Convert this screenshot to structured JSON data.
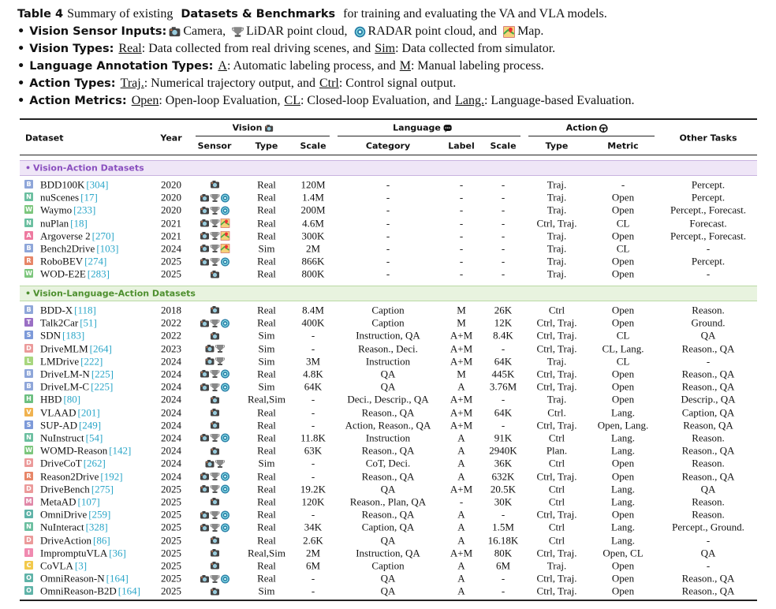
{
  "caption": {
    "label": "Table 4",
    "parts": [
      "Summary of existing",
      "Datasets & Benchmarks",
      "for training and evaluating the VA and VLA models."
    ]
  },
  "bullets": [
    {
      "term": "Vision Sensor Inputs:",
      "segments": [
        "Camera,",
        "LiDAR point cloud,",
        "RADAR point cloud, and",
        "Map."
      ]
    },
    {
      "term": "Vision Types:",
      "segments": [
        {
          "u": "Real"
        },
        ": Data collected from real driving scenes, and",
        {
          "u": "Sim"
        },
        ": Data collected from simulator."
      ]
    },
    {
      "term": "Language Annotation Types:",
      "segments": [
        {
          "u": "A"
        },
        ": Automatic labeling process, and",
        {
          "u": "M"
        },
        ": Manual labeling process."
      ]
    },
    {
      "term": "Action Types:",
      "segments": [
        {
          "u": "Traj."
        },
        ": Numerical trajectory output, and",
        {
          "u": "Ctrl"
        },
        ": Control signal output."
      ]
    },
    {
      "term": "Action Metrics:",
      "segments": [
        {
          "u": "Open"
        },
        ": Open-loop Evaluation,",
        {
          "u": "CL"
        },
        ": Closed-loop Evaluation, and",
        {
          "u": "Lang."
        },
        ": Language-based Evaluation."
      ]
    }
  ],
  "table": {
    "headers": {
      "dataset": "Dataset",
      "year": "Year",
      "vision": "Vision",
      "language": "Language",
      "action": "Action",
      "other": "Other Tasks",
      "sub": [
        "Sensor",
        "Type",
        "Scale",
        "Category",
        "Label",
        "Scale",
        "Type",
        "Metric"
      ]
    },
    "sections": [
      {
        "title": "Vision-Action Datasets",
        "rows": [
          [
            "B",
            "BDD100K",
            "[304]",
            2020,
            "Real",
            "120M",
            "-",
            "-",
            "-",
            "Traj.",
            "-",
            "Percept."
          ],
          [
            "N",
            "nuScenes",
            "[17]",
            2020,
            "Real",
            "1.4M",
            "-",
            "-",
            "-",
            "Traj.",
            "Open",
            "Percept."
          ],
          [
            "W",
            "Waymo",
            "[233]",
            2020,
            "Real",
            "200M",
            "-",
            "-",
            "-",
            "Traj.",
            "Open",
            "Percept., Forecast."
          ],
          [
            "N",
            "nuPlan",
            "[18]",
            2021,
            "Real",
            "4.6M",
            "-",
            "-",
            "-",
            "Ctrl, Traj.",
            "CL",
            "Forecast."
          ],
          [
            "A",
            "Argoverse 2",
            "[270]",
            2021,
            "Real",
            "300K",
            "-",
            "-",
            "-",
            "Traj.",
            "Open",
            "Percept., Forecast."
          ],
          [
            "B",
            "Bench2Drive",
            "[103]",
            2024,
            "Sim",
            "2M",
            "-",
            "-",
            "-",
            "Traj.",
            "CL",
            "-"
          ],
          [
            "R",
            "RoboBEV",
            "[274]",
            2025,
            "Real",
            "866K",
            "-",
            "-",
            "-",
            "Traj.",
            "Open",
            "Percept."
          ],
          [
            "W",
            "WOD-E2E",
            "[283]",
            2025,
            "Real",
            "800K",
            "-",
            "-",
            "-",
            "Traj.",
            "Open",
            "-"
          ]
        ]
      },
      {
        "title": "Vision-Language-Action Datasets",
        "rows": [
          [
            "B",
            "BDD-X",
            "[118]",
            2018,
            "Real",
            "8.4M",
            "Caption",
            "M",
            "26K",
            "Ctrl",
            "Open",
            "Reason."
          ],
          [
            "T",
            "Talk2Car",
            "[51]",
            2022,
            "Real",
            "400K",
            "Caption",
            "M",
            "12K",
            "Ctrl, Traj.",
            "Open",
            "Ground."
          ],
          [
            "S",
            "SDN",
            "[183]",
            2022,
            "Sim",
            "-",
            "Instruction, QA",
            "A+M",
            "8.4K",
            "Ctrl, Traj.",
            "CL",
            "QA"
          ],
          [
            "D",
            "DriveMLM",
            "[264]",
            2023,
            "Sim",
            "-",
            "Reason., Deci.",
            "A+M",
            "-",
            "Ctrl, Traj.",
            "CL, Lang.",
            "Reason., QA"
          ],
          [
            "L",
            "LMDrive",
            "[222]",
            2024,
            "Sim",
            "3M",
            "Instruction",
            "A+M",
            "64K",
            "Traj.",
            "CL",
            "-"
          ],
          [
            "B",
            "DriveLM-N",
            "[225]",
            2024,
            "Real",
            "4.8K",
            "QA",
            "M",
            "445K",
            "Ctrl, Traj.",
            "Open",
            "Reason., QA"
          ],
          [
            "B",
            "DriveLM-C",
            "[225]",
            2024,
            "Sim",
            "64K",
            "QA",
            "A",
            "3.76M",
            "Ctrl, Traj.",
            "Open",
            "Reason., QA"
          ],
          [
            "H",
            "HBD",
            "[80]",
            2024,
            "Real,Sim",
            "-",
            "Deci., Descrip., QA",
            "A+M",
            "-",
            "Traj.",
            "Open",
            "Descrip., QA"
          ],
          [
            "V",
            "VLAAD",
            "[201]",
            2024,
            "Real",
            "-",
            "Reason., QA",
            "A+M",
            "64K",
            "Ctrl.",
            "Lang.",
            "Caption, QA"
          ],
          [
            "S",
            "SUP-AD",
            "[249]",
            2024,
            "Real",
            "-",
            "Action, Reason., QA",
            "A+M",
            "-",
            "Ctrl, Traj.",
            "Open, Lang.",
            "Reason, QA"
          ],
          [
            "N",
            "NuInstruct",
            "[54]",
            2024,
            "Real",
            "11.8K",
            "Instruction",
            "A",
            "91K",
            "Ctrl",
            "Lang.",
            "Reason."
          ],
          [
            "W",
            "WOMD-Reason",
            "[142]",
            2024,
            "Real",
            "63K",
            "Reason., QA",
            "A",
            "2940K",
            "Plan.",
            "Lang.",
            "Reason., QA"
          ],
          [
            "D",
            "DriveCoT",
            "[262]",
            2024,
            "Sim",
            "-",
            "CoT, Deci.",
            "A",
            "36K",
            "Ctrl",
            "Open",
            "Reason."
          ],
          [
            "R",
            "Reason2Drive",
            "[192]",
            2024,
            "Real",
            "-",
            "Reason., QA",
            "A",
            "632K",
            "Ctrl, Traj.",
            "Open",
            "Reason., QA"
          ],
          [
            "D",
            "DriveBench",
            "[275]",
            2025,
            "Real",
            "19.2K",
            "QA",
            "A+M",
            "20.5K",
            "Ctrl",
            "Lang.",
            "QA"
          ],
          [
            "M",
            "MetaAD",
            "[107]",
            2025,
            "Real",
            "120K",
            "Reason., Plan, QA",
            "-",
            "30K",
            "Ctrl",
            "Lang.",
            "Reason."
          ],
          [
            "O",
            "OmniDrive",
            "[259]",
            2025,
            "Real",
            "-",
            "Reason., QA",
            "A",
            "-",
            "Ctrl, Traj.",
            "Open",
            "Reason."
          ],
          [
            "N",
            "NuInteract",
            "[328]",
            2025,
            "Real",
            "34K",
            "Caption, QA",
            "A",
            "1.5M",
            "Ctrl",
            "Lang.",
            "Percept., Ground."
          ],
          [
            "D",
            "DriveAction",
            "[86]",
            2025,
            "Real",
            "2.6K",
            "QA",
            "A",
            "16.18K",
            "Ctrl",
            "Lang.",
            "-"
          ],
          [
            "I",
            "ImpromptuVLA",
            "[36]",
            2025,
            "Real,Sim",
            "2M",
            "Instruction, QA",
            "A+M",
            "80K",
            "Ctrl, Traj.",
            "Open, CL",
            "QA"
          ],
          [
            "C",
            "CoVLA",
            "[3]",
            2025,
            "Real",
            "6M",
            "Caption",
            "A",
            "6M",
            "Traj.",
            "Open",
            "-"
          ],
          [
            "O",
            "OmniReason-N",
            "[164]",
            2025,
            "Real",
            "-",
            "QA",
            "A",
            "-",
            "Ctrl, Traj.",
            "Open",
            "Reason., QA"
          ],
          [
            "O",
            "OmniReason-B2D",
            "[164]",
            2025,
            "Sim",
            "-",
            "QA",
            "A",
            "-",
            "Ctrl, Traj.",
            "Open",
            "Reason., QA"
          ]
        ]
      }
    ]
  }
}
